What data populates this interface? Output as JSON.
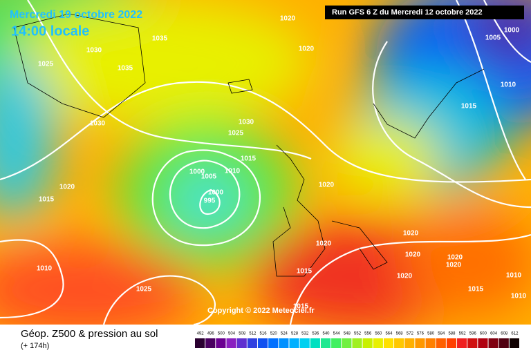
{
  "header": {
    "date": "Mercredi 19 octobre 2022",
    "time": "14:00 locale",
    "run": "Run GFS 6 Z du Mercredi 12 octobre 2022"
  },
  "map": {
    "isobar_labels": [
      "1020",
      "1035",
      "1030",
      "1020",
      "1025",
      "1035",
      "1005",
      "1000",
      "1010",
      "1015",
      "1030",
      "1030",
      "1025",
      "1015",
      "1010",
      "1000",
      "1005",
      "1000",
      "995",
      "1020",
      "1020",
      "1015",
      "1020",
      "1020",
      "1020",
      "1020",
      "1020",
      "1010",
      "1015",
      "1020",
      "1010",
      "1025",
      "1015",
      "1010",
      "1015"
    ],
    "copyright": "Copyright © 2022 Meteociel.fr"
  },
  "footer": {
    "title": "Géop. Z500 & pression au sol",
    "lead": "(+ 174h)",
    "scale": [
      492,
      496,
      500,
      504,
      508,
      512,
      516,
      520,
      524,
      528,
      532,
      536,
      540,
      544,
      548,
      552,
      556,
      560,
      564,
      568,
      572,
      576,
      580,
      584,
      588,
      592,
      596,
      600,
      604,
      608,
      612
    ],
    "scale_colors": [
      "#2a0030",
      "#4a0060",
      "#6a0090",
      "#8a20c0",
      "#6030d0",
      "#3040e0",
      "#1050f0",
      "#0070ff",
      "#0090ff",
      "#00b0ff",
      "#00d0f0",
      "#00e0c0",
      "#20e890",
      "#40f060",
      "#70f040",
      "#a0f020",
      "#c8f000",
      "#e8f000",
      "#ffe000",
      "#ffc800",
      "#ffb000",
      "#ff9800",
      "#ff8000",
      "#ff6000",
      "#ff4000",
      "#f02020",
      "#d01010",
      "#b00010",
      "#800010",
      "#500010",
      "#100000"
    ]
  }
}
